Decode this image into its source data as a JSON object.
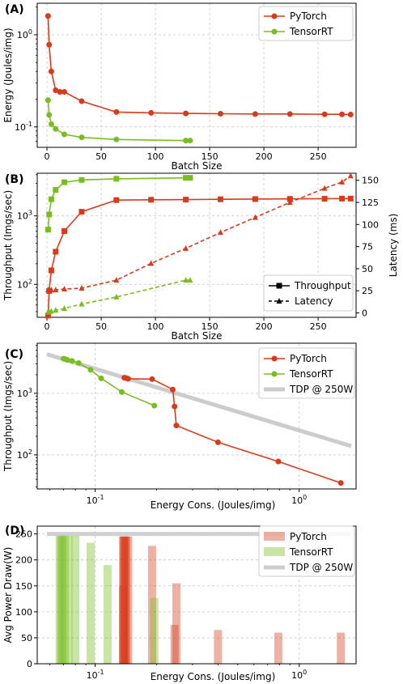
{
  "colors": {
    "pytorch": "#d83b1c",
    "tensorrt": "#78be20",
    "tdp": "#cccccc",
    "grid": "#c8c8c8"
  },
  "chart_data": [
    {
      "panel": "(A)",
      "type": "line",
      "xlabel": "Batch Size",
      "ylabel": "Energy (Joules/img)",
      "yscale": "log",
      "xlim": [
        -9,
        285
      ],
      "ylim": [
        0.06,
        2.2
      ],
      "xticks": [
        "0",
        "50",
        "100",
        "150",
        "200",
        "250"
      ],
      "yticks": [
        "10^-1",
        "10^0"
      ],
      "grid": true,
      "legend": "top-right",
      "series": [
        {
          "name": "PyTorch",
          "marker": "circle",
          "x": [
            1,
            2,
            4,
            8,
            12,
            16,
            32,
            64,
            96,
            128,
            160,
            192,
            224,
            256,
            272,
            280
          ],
          "y": [
            1.6,
            0.78,
            0.4,
            0.25,
            0.24,
            0.24,
            0.19,
            0.145,
            0.142,
            0.14,
            0.139,
            0.138,
            0.138,
            0.137,
            0.137,
            0.136
          ]
        },
        {
          "name": "TensorRT",
          "marker": "circle",
          "x": [
            1,
            2,
            4,
            8,
            16,
            32,
            64,
            128,
            132
          ],
          "y": [
            0.195,
            0.135,
            0.107,
            0.095,
            0.083,
            0.077,
            0.073,
            0.071,
            0.071
          ]
        }
      ]
    },
    {
      "panel": "(B)",
      "type": "line",
      "xlabel": "Batch Size",
      "ylabel": "Throughput (Imgs/sec)",
      "y2label": "Latency (ms)",
      "yscale": "log",
      "xlim": [
        -9,
        285
      ],
      "ylim": [
        33,
        4200
      ],
      "y2lim": [
        -5,
        158
      ],
      "xticks": [
        "0",
        "50",
        "100",
        "150",
        "200",
        "250"
      ],
      "yticks": [
        "10^2",
        "10^3"
      ],
      "y2ticks": [
        "0",
        "25",
        "50",
        "75",
        "100",
        "125",
        "150"
      ],
      "grid": true,
      "legend": "lower-right",
      "legend_entries": [
        {
          "label": "Throughput",
          "marker": "square",
          "line": "solid"
        },
        {
          "label": "Latency",
          "marker": "triangle",
          "line": "dashed"
        }
      ],
      "series": [
        {
          "name": "PyTorch",
          "metric": "throughput",
          "marker": "square",
          "x": [
            1,
            2,
            4,
            8,
            16,
            32,
            64,
            96,
            128,
            160,
            192,
            224,
            256,
            272,
            280
          ],
          "y": [
            35,
            80,
            160,
            300,
            600,
            1150,
            1700,
            1720,
            1730,
            1750,
            1760,
            1770,
            1780,
            1790,
            1790
          ]
        },
        {
          "name": "TensorRT",
          "metric": "throughput",
          "marker": "square",
          "x": [
            1,
            2,
            4,
            8,
            16,
            32,
            64,
            128,
            132
          ],
          "y": [
            630,
            1050,
            1750,
            2400,
            3100,
            3350,
            3480,
            3600,
            3600
          ]
        },
        {
          "name": "PyTorch",
          "metric": "latency",
          "marker": "triangle",
          "x": [
            1,
            2,
            4,
            8,
            16,
            32,
            64,
            96,
            128,
            160,
            192,
            224,
            256,
            272,
            280
          ],
          "y": [
            26,
            26,
            26,
            26,
            27,
            28,
            37,
            56,
            73,
            91,
            108,
            125,
            141,
            148,
            155
          ]
        },
        {
          "name": "TensorRT",
          "metric": "latency",
          "marker": "triangle",
          "x": [
            1,
            2,
            4,
            8,
            16,
            32,
            64,
            128,
            132
          ],
          "y": [
            1,
            1,
            2,
            3,
            5,
            10,
            18,
            37,
            37
          ]
        }
      ]
    },
    {
      "panel": "(C)",
      "type": "line",
      "xlabel": "Energy Cons. (Joules/img)",
      "ylabel": "Throughput (Imgs/sec)",
      "xscale": "log",
      "yscale": "log",
      "xlim": [
        0.052,
        1.9
      ],
      "ylim": [
        28,
        6500
      ],
      "xticks": [
        "10^-1",
        "10^0"
      ],
      "yticks": [
        "10^2",
        "10^3"
      ],
      "grid": true,
      "legend": "top-right",
      "series": [
        {
          "name": "PyTorch",
          "x": [
            1.6,
            0.79,
            0.4,
            0.25,
            0.245,
            0.24,
            0.19,
            0.145,
            0.142,
            0.14,
            0.139
          ],
          "y": [
            35,
            78,
            160,
            300,
            610,
            1150,
            1700,
            1720,
            1760,
            1780,
            1790
          ]
        },
        {
          "name": "TensorRT",
          "x": [
            0.195,
            0.135,
            0.107,
            0.095,
            0.083,
            0.077,
            0.073,
            0.071,
            0.07
          ],
          "y": [
            630,
            1050,
            1750,
            2400,
            3100,
            3350,
            3480,
            3600,
            3650
          ]
        },
        {
          "name": "TDP @ 250W",
          "x": [
            0.058,
            1.8
          ],
          "y": [
            4310,
            139
          ]
        }
      ]
    },
    {
      "panel": "(D)",
      "type": "bar",
      "xlabel": "Energy Cons. (Joules/img)",
      "ylabel": "Avg Power Draw(W)",
      "xscale": "log",
      "xlim": [
        0.052,
        1.9
      ],
      "ylim": [
        0,
        265
      ],
      "xticks": [
        "10^-1",
        "10^0"
      ],
      "yticks": [
        "0",
        "50",
        "100",
        "150",
        "200",
        "250"
      ],
      "grid": true,
      "legend": "top-right",
      "series": [
        {
          "name": "PyTorch",
          "x": [
            1.6,
            0.79,
            0.4,
            0.25,
            0.245,
            0.19,
            0.145,
            0.142,
            0.14,
            0.139,
            0.138,
            0.137,
            0.137
          ],
          "y": [
            60,
            60,
            65,
            155,
            75,
            227,
            245,
            245,
            245,
            245,
            245,
            245,
            150
          ]
        },
        {
          "name": "TensorRT",
          "x": [
            0.195,
            0.115,
            0.095,
            0.08,
            0.074,
            0.071,
            0.069,
            0.068,
            0.067
          ],
          "y": [
            127,
            190,
            233,
            248,
            248,
            248,
            248,
            248,
            248
          ]
        },
        {
          "name": "TDP @ 250W",
          "y": [
            250,
            250
          ]
        }
      ]
    }
  ]
}
